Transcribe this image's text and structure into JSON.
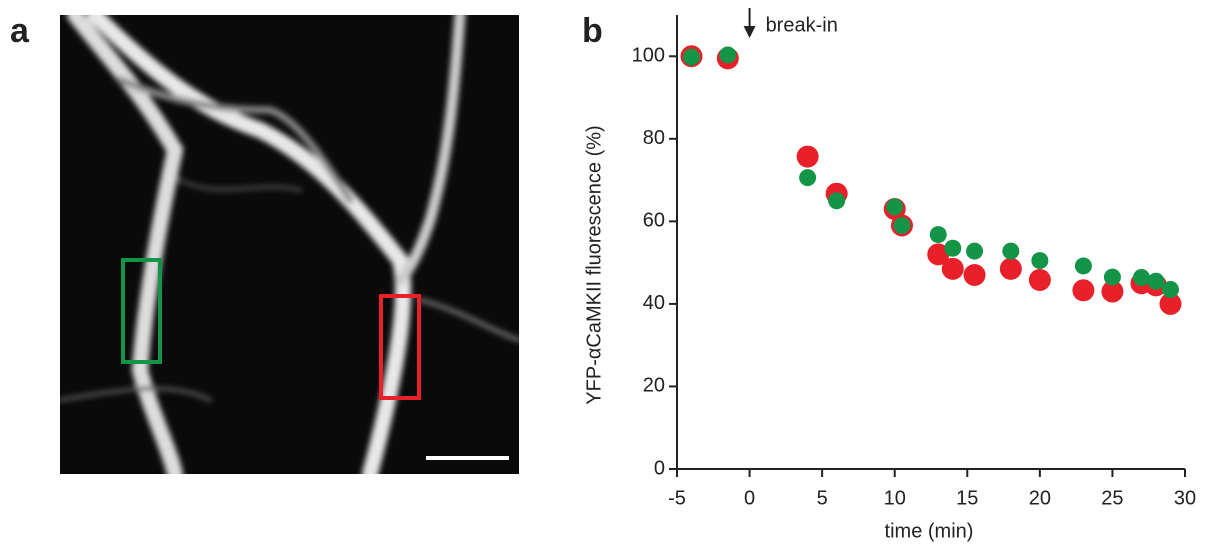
{
  "panels": {
    "labels": [
      "a",
      "b"
    ]
  },
  "chart_data": {
    "type": "scatter",
    "x_label": "time (min)",
    "y_label": "YFP-αCaMKII fluorescence (%)",
    "annotation": {
      "text": "break-in",
      "x": 0
    },
    "xlim": [
      -5,
      30
    ],
    "xticks": [
      -5,
      0,
      5,
      10,
      15,
      20,
      25,
      30
    ],
    "ylim": [
      0,
      110
    ],
    "yticks": [
      0,
      20,
      40,
      60,
      80,
      100
    ],
    "series": [
      {
        "color": "#e8202a",
        "x": [
          -4,
          -1.5,
          4,
          6,
          10,
          10.5,
          13,
          14,
          15.5,
          18,
          20,
          23,
          25,
          27,
          28,
          29
        ],
        "values": [
          100,
          99.5,
          75.7,
          66.7,
          63,
          59,
          52,
          48.5,
          47,
          48.5,
          45.8,
          43.3,
          43,
          45,
          44.5,
          40
        ]
      },
      {
        "color": "#139447",
        "x": [
          -4,
          -1.5,
          4,
          6,
          10,
          10.5,
          13,
          14,
          15.5,
          18,
          20,
          23,
          25,
          27,
          28,
          29
        ],
        "values": [
          99.8,
          100.3,
          70.6,
          65,
          63.5,
          59,
          56.8,
          53.5,
          52.8,
          52.8,
          50.5,
          49.2,
          46.5,
          46.4,
          45.5,
          43.5
        ]
      }
    ]
  }
}
